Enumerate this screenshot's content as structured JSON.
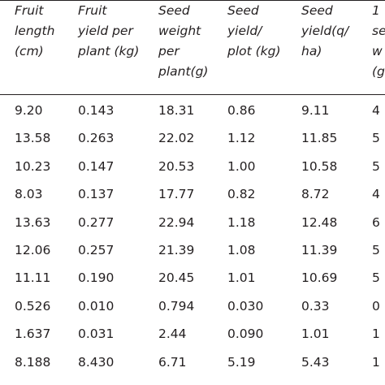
{
  "table": {
    "headers": [
      "Fruit\nlength\n(cm)",
      "Fruit\nyield per\nplant (kg)",
      "Seed\nweight\nper\nplant(g)",
      "Seed\nyield/\nplot (kg)",
      "Seed\nyield(q/\nha)",
      "1\nse\nw\n(g"
    ],
    "rows": [
      [
        "9.20",
        "0.143",
        "18.31",
        "0.86",
        "9.11",
        "4"
      ],
      [
        "13.58",
        "0.263",
        "22.02",
        "1.12",
        "11.85",
        "5"
      ],
      [
        "10.23",
        "0.147",
        "20.53",
        "1.00",
        "10.58",
        "5"
      ],
      [
        "8.03",
        "0.137",
        "17.77",
        "0.82",
        "8.72",
        "4"
      ],
      [
        "13.63",
        "0.277",
        "22.94",
        "1.18",
        "12.48",
        "6"
      ],
      [
        "12.06",
        "0.257",
        "21.39",
        "1.08",
        "11.39",
        "5"
      ],
      [
        "11.11",
        "0.190",
        "20.45",
        "1.01",
        "10.69",
        "5"
      ],
      [
        "0.526",
        "0.010",
        "0.794",
        "0.030",
        "0.33",
        "0"
      ],
      [
        "1.637",
        "0.031",
        "2.44",
        "0.090",
        "1.01",
        "1"
      ],
      [
        "8.188",
        "8.430",
        "6.71",
        "5.19",
        "5.43",
        "1"
      ]
    ]
  }
}
